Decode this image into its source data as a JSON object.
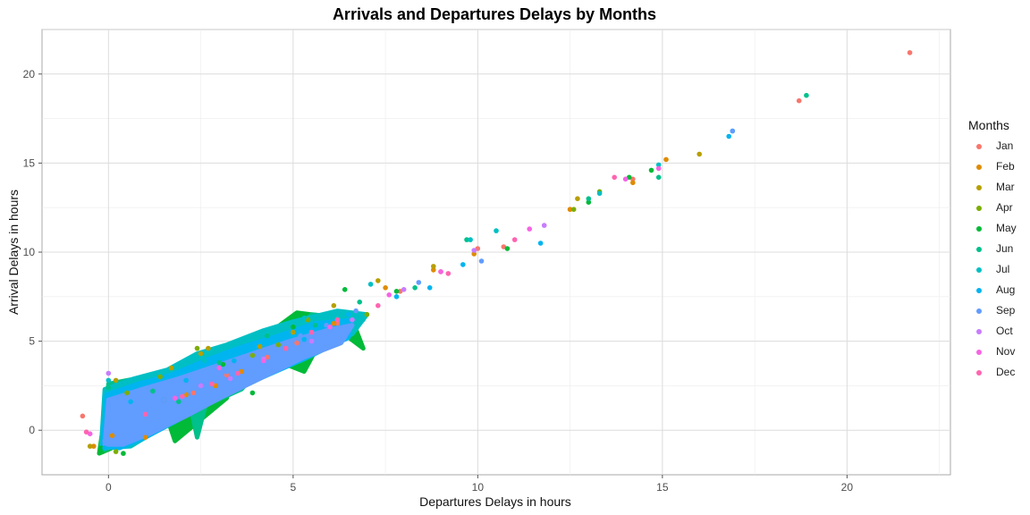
{
  "chart_data": {
    "type": "scatter",
    "title": "Arrivals and Departures Delays by Months",
    "xlabel": "Departures Delays in hours",
    "ylabel": "Arrival Delays in hours",
    "xlim": [
      -1.8,
      22.8
    ],
    "ylim": [
      -2.5,
      22.5
    ],
    "x_ticks": [
      0,
      5,
      10,
      15,
      20
    ],
    "y_ticks": [
      0,
      5,
      10,
      15,
      20
    ],
    "grid": true,
    "legend_title": "Months",
    "legend_position": "right",
    "series": [
      {
        "name": "Jan",
        "color": "#F8766D",
        "x": [
          21.7,
          18.7,
          12.5,
          10.0,
          9.0,
          7.9,
          6.2,
          5.1,
          4.3,
          3.2,
          2.3,
          -0.7,
          14.2,
          10.7
        ],
        "y": [
          21.2,
          18.5,
          12.4,
          10.2,
          8.9,
          7.8,
          6.0,
          4.9,
          4.1,
          3.1,
          2.1,
          0.8,
          14.1,
          10.3
        ]
      },
      {
        "name": "Feb",
        "color": "#DE8C00",
        "x": [
          15.1,
          14.2,
          12.5,
          9.9,
          8.8,
          7.5,
          6.1,
          4.8,
          3.6,
          2.9,
          2.1,
          1.0,
          0.1,
          -0.4
        ],
        "y": [
          15.2,
          13.9,
          12.4,
          9.9,
          9.0,
          8.0,
          6.0,
          4.6,
          3.3,
          2.5,
          2.0,
          -0.4,
          -0.3,
          -0.9
        ]
      },
      {
        "name": "Mar",
        "color": "#B79F00",
        "x": [
          16.0,
          12.7,
          8.8,
          7.3,
          6.1,
          5.0,
          4.1,
          2.5,
          2.7,
          1.7,
          0.2,
          -0.5
        ],
        "y": [
          15.5,
          13.0,
          9.2,
          8.4,
          7.0,
          5.5,
          4.7,
          4.3,
          4.6,
          3.5,
          2.8,
          -0.9
        ]
      },
      {
        "name": "Apr",
        "color": "#7CAE00",
        "x": [
          13.3,
          12.6,
          7.0,
          5.4,
          4.6,
          3.9,
          2.4,
          1.4,
          0.5,
          0.2
        ],
        "y": [
          13.4,
          12.4,
          6.5,
          6.2,
          4.8,
          4.2,
          4.6,
          3.0,
          2.1,
          -1.2
        ]
      },
      {
        "name": "May",
        "color": "#00BA38",
        "x": [
          14.7,
          14.1,
          13.0,
          10.8,
          7.8,
          6.4,
          5.0,
          3.1,
          3.9,
          1.5,
          0.4,
          -0.2
        ],
        "y": [
          14.6,
          14.2,
          12.8,
          10.2,
          7.8,
          7.9,
          5.8,
          3.7,
          2.1,
          1.7,
          -1.3,
          -1.0
        ]
      },
      {
        "name": "Jun",
        "color": "#00C08B",
        "x": [
          18.9,
          14.9,
          13.0,
          9.7,
          8.3,
          6.8,
          5.6,
          4.3,
          3.0,
          1.9,
          1.2,
          0.0
        ],
        "y": [
          18.8,
          14.2,
          13.0,
          10.7,
          8.0,
          7.2,
          5.9,
          5.3,
          3.8,
          1.6,
          2.2,
          2.4
        ]
      },
      {
        "name": "Jul",
        "color": "#00BFC4",
        "x": [
          16.9,
          14.9,
          13.3,
          10.5,
          9.8,
          7.1,
          5.3,
          4.5,
          2.6,
          1.3,
          0.0
        ],
        "y": [
          16.8,
          14.9,
          13.3,
          11.2,
          10.7,
          8.2,
          6.3,
          5.6,
          3.9,
          3.2,
          2.8
        ]
      },
      {
        "name": "Aug",
        "color": "#00B4F0",
        "x": [
          16.8,
          11.7,
          9.6,
          8.7,
          7.8,
          6.5,
          5.3,
          3.4,
          2.1,
          0.6,
          -0.1
        ],
        "y": [
          16.5,
          10.5,
          9.3,
          8.0,
          7.5,
          6.5,
          5.1,
          3.9,
          2.8,
          1.6,
          -1.0
        ]
      },
      {
        "name": "Sep",
        "color": "#619CFF",
        "x": [
          16.9,
          10.1,
          8.4,
          6.7,
          5.9,
          5.2,
          4.5,
          3.8,
          3.2,
          2.6,
          2.0,
          1.5,
          1.1,
          0.8,
          0.5,
          0.3,
          0.1,
          -0.1
        ],
        "y": [
          16.8,
          9.5,
          8.3,
          6.7,
          5.9,
          5.3,
          4.6,
          4.0,
          3.3,
          2.7,
          2.1,
          1.7,
          1.3,
          1.1,
          0.5,
          0.2,
          0.0,
          -0.6
        ]
      },
      {
        "name": "Oct",
        "color": "#C77CFF",
        "x": [
          11.8,
          9.9,
          8.0,
          6.6,
          5.5,
          4.2,
          3.3,
          2.5,
          0.0
        ],
        "y": [
          11.5,
          10.1,
          7.9,
          6.2,
          5.0,
          4.0,
          2.9,
          2.5,
          3.2
        ]
      },
      {
        "name": "Nov",
        "color": "#F564E3",
        "x": [
          14.9,
          14.0,
          11.4,
          9.0,
          7.6,
          6.0,
          4.2,
          3.0,
          1.8,
          -0.5
        ],
        "y": [
          14.7,
          14.1,
          11.3,
          8.9,
          7.6,
          5.8,
          3.9,
          3.5,
          1.8,
          -0.2
        ]
      },
      {
        "name": "Dec",
        "color": "#FF64B0",
        "x": [
          13.7,
          11.0,
          9.2,
          7.3,
          6.2,
          5.5,
          4.8,
          3.5,
          2.8,
          2.0,
          1.0,
          -0.6
        ],
        "y": [
          14.2,
          10.7,
          8.8,
          7.0,
          6.2,
          5.5,
          4.6,
          3.2,
          2.6,
          1.9,
          0.9,
          -0.1
        ]
      }
    ],
    "dense_cluster": [
      {
        "color": "#00BA38",
        "points": [
          [
            -0.25,
            -1.3
          ],
          [
            0.0,
            2.3
          ],
          [
            1.2,
            3.1
          ],
          [
            1.8,
            -0.6
          ],
          [
            3.2,
            1.8
          ],
          [
            3.7,
            4.6
          ],
          [
            5.3,
            3.3
          ],
          [
            6.0,
            6.0
          ],
          [
            6.9,
            4.6
          ],
          [
            6.6,
            6.2
          ],
          [
            5.1,
            6.6
          ],
          [
            0.2,
            -0.9
          ]
        ]
      },
      {
        "color": "#00C08B",
        "points": [
          [
            -0.1,
            -1.1
          ],
          [
            0.0,
            2.6
          ],
          [
            1.0,
            3.0
          ],
          [
            2.0,
            3.6
          ],
          [
            2.4,
            -0.4
          ],
          [
            3.0,
            4.4
          ],
          [
            4.4,
            5.4
          ],
          [
            5.2,
            3.9
          ],
          [
            6.9,
            6.2
          ],
          [
            5.5,
            6.5
          ],
          [
            3.6,
            2.3
          ]
        ]
      },
      {
        "color": "#00BFC4",
        "points": [
          [
            -0.2,
            -1.0
          ],
          [
            -0.1,
            2.3
          ],
          [
            0.7,
            2.9
          ],
          [
            1.6,
            3.4
          ],
          [
            2.4,
            4.3
          ],
          [
            3.2,
            4.8
          ],
          [
            4.2,
            5.6
          ],
          [
            5.0,
            6.1
          ],
          [
            6.2,
            6.7
          ],
          [
            7.0,
            6.5
          ],
          [
            6.6,
            5.4
          ],
          [
            5.5,
            4.4
          ],
          [
            4.4,
            3.3
          ],
          [
            3.4,
            2.3
          ],
          [
            2.4,
            1.2
          ],
          [
            1.4,
            0.1
          ],
          [
            0.6,
            -0.9
          ]
        ]
      },
      {
        "color": "#00B4F0",
        "points": [
          [
            -0.15,
            -0.9
          ],
          [
            -0.05,
            2.0
          ],
          [
            0.8,
            2.6
          ],
          [
            1.7,
            3.1
          ],
          [
            2.6,
            3.9
          ],
          [
            3.5,
            4.6
          ],
          [
            4.6,
            5.3
          ],
          [
            5.6,
            6.0
          ],
          [
            6.6,
            6.2
          ],
          [
            6.5,
            5.2
          ],
          [
            5.3,
            4.0
          ],
          [
            4.2,
            3.0
          ],
          [
            3.0,
            1.8
          ],
          [
            2.0,
            0.7
          ],
          [
            1.0,
            -0.4
          ],
          [
            0.3,
            -1.0
          ]
        ]
      },
      {
        "color": "#619CFF",
        "points": [
          [
            -0.1,
            -0.8
          ],
          [
            0.0,
            1.7
          ],
          [
            0.9,
            2.3
          ],
          [
            1.9,
            2.9
          ],
          [
            2.9,
            3.6
          ],
          [
            3.9,
            4.3
          ],
          [
            4.9,
            5.0
          ],
          [
            5.9,
            5.6
          ],
          [
            6.6,
            5.9
          ],
          [
            6.3,
            4.9
          ],
          [
            5.3,
            4.1
          ],
          [
            4.2,
            3.0
          ],
          [
            3.1,
            1.9
          ],
          [
            2.1,
            0.8
          ],
          [
            1.1,
            -0.2
          ],
          [
            0.4,
            -0.8
          ]
        ]
      }
    ]
  }
}
